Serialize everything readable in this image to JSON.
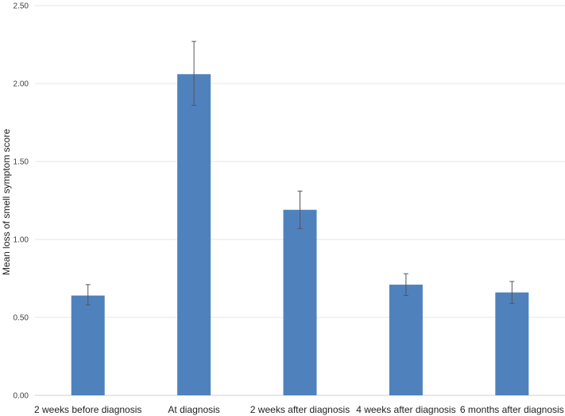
{
  "chart_data": {
    "type": "bar",
    "categories": [
      "2 weeks before diagnosis",
      "At diagnosis",
      "2 weeks after diagnosis",
      "4 weeks after diagnosis",
      "6 months after diagnosis"
    ],
    "values": [
      0.64,
      2.06,
      1.19,
      0.71,
      0.66
    ],
    "error_low": [
      0.58,
      1.86,
      1.07,
      0.64,
      0.59
    ],
    "error_high": [
      0.71,
      2.27,
      1.31,
      0.78,
      0.73
    ],
    "title": "",
    "xlabel": "",
    "ylabel": "Mean loss of smell symptom score",
    "ylim": [
      0,
      2.5
    ],
    "yticks": [
      "0.00",
      "0.50",
      "1.00",
      "1.50",
      "2.00",
      "2.50"
    ],
    "grid": true,
    "legend": "none",
    "bar_color": "#4f81bd"
  }
}
